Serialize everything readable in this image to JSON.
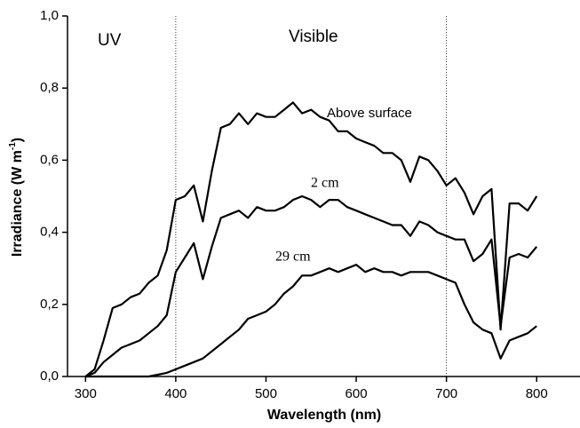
{
  "chart_data": {
    "type": "line",
    "xlabel": "Wavelength (nm)",
    "ylabel": "Irradiance (W m",
    "ylabel_sup": "-1",
    "ylabel_end": ")",
    "xlim": [
      280,
      850
    ],
    "ylim": [
      0,
      1
    ],
    "xticks": [
      300,
      400,
      500,
      600,
      700,
      800
    ],
    "yticks": [
      {
        "value": 0,
        "label": "0,0"
      },
      {
        "value": 0.2,
        "label": "0,2"
      },
      {
        "value": 0.4,
        "label": "0,4"
      },
      {
        "value": 0.6,
        "label": "0,6"
      },
      {
        "value": 0.8,
        "label": "0,8"
      },
      {
        "value": 1,
        "label": "1,0"
      }
    ],
    "vlines": [
      400,
      700
    ],
    "annotations": [
      "UV",
      "Visible"
    ],
    "x": [
      300,
      310,
      320,
      330,
      340,
      350,
      360,
      370,
      380,
      390,
      400,
      410,
      420,
      430,
      440,
      450,
      460,
      470,
      480,
      490,
      500,
      510,
      520,
      530,
      540,
      550,
      560,
      570,
      580,
      590,
      600,
      610,
      620,
      630,
      640,
      650,
      660,
      670,
      680,
      690,
      700,
      710,
      720,
      730,
      740,
      750,
      760,
      770,
      780,
      790,
      800
    ],
    "series": [
      {
        "name": "Above surface",
        "color": "#000000",
        "values": [
          0,
          0.02,
          0.1,
          0.19,
          0.2,
          0.22,
          0.23,
          0.26,
          0.28,
          0.35,
          0.49,
          0.5,
          0.53,
          0.43,
          0.57,
          0.69,
          0.7,
          0.73,
          0.7,
          0.73,
          0.72,
          0.72,
          0.74,
          0.76,
          0.73,
          0.74,
          0.72,
          0.71,
          0.68,
          0.68,
          0.66,
          0.65,
          0.64,
          0.62,
          0.62,
          0.6,
          0.54,
          0.61,
          0.6,
          0.57,
          0.53,
          0.55,
          0.51,
          0.45,
          0.5,
          0.52,
          0.13,
          0.48,
          0.48,
          0.46,
          0.5
        ]
      },
      {
        "name": "2 cm",
        "color": "#000000",
        "values": [
          0,
          0.01,
          0.04,
          0.06,
          0.08,
          0.09,
          0.1,
          0.12,
          0.14,
          0.17,
          0.29,
          0.33,
          0.37,
          0.27,
          0.36,
          0.44,
          0.45,
          0.46,
          0.44,
          0.47,
          0.46,
          0.46,
          0.47,
          0.49,
          0.5,
          0.49,
          0.47,
          0.49,
          0.49,
          0.47,
          0.46,
          0.45,
          0.44,
          0.43,
          0.42,
          0.42,
          0.39,
          0.43,
          0.42,
          0.4,
          0.39,
          0.38,
          0.38,
          0.32,
          0.34,
          0.38,
          0.14,
          0.33,
          0.34,
          0.33,
          0.36
        ]
      },
      {
        "name": "29 cm",
        "color": "#000000",
        "values": [
          0,
          0,
          0,
          0,
          0,
          0,
          0,
          0,
          0.005,
          0.01,
          0.02,
          0.03,
          0.04,
          0.05,
          0.07,
          0.09,
          0.11,
          0.13,
          0.16,
          0.17,
          0.18,
          0.2,
          0.23,
          0.25,
          0.28,
          0.28,
          0.29,
          0.3,
          0.29,
          0.3,
          0.31,
          0.29,
          0.3,
          0.29,
          0.29,
          0.28,
          0.29,
          0.29,
          0.29,
          0.28,
          0.27,
          0.26,
          0.2,
          0.15,
          0.13,
          0.12,
          0.05,
          0.1,
          0.11,
          0.12,
          0.14
        ]
      }
    ]
  }
}
